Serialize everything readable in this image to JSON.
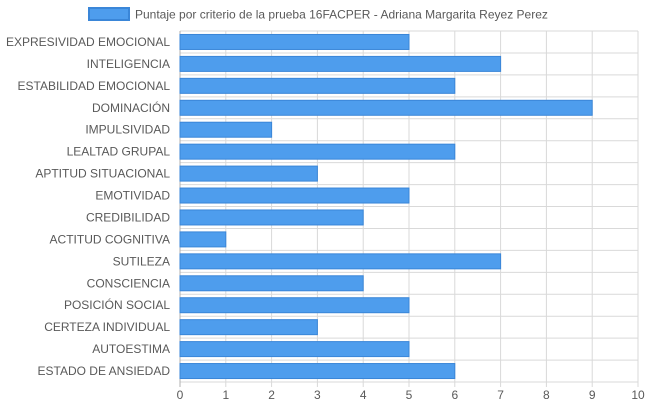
{
  "chart_data": {
    "type": "bar",
    "orientation": "horizontal",
    "categories": [
      "EXPRESIVIDAD EMOCIONAL",
      "INTELIGENCIA",
      "ESTABILIDAD EMOCIONAL",
      "DOMINACIÓN",
      "IMPULSIVIDAD",
      "LEALTAD GRUPAL",
      "APTITUD SITUACIONAL",
      "EMOTIVIDAD",
      "CREDIBILIDAD",
      "ACTITUD COGNITIVA",
      "SUTILEZA",
      "CONSCIENCIA",
      "POSICIÓN SOCIAL",
      "CERTEZA INDIVIDUAL",
      "AUTOESTIMA",
      "ESTADO DE ANSIEDAD"
    ],
    "series": [
      {
        "name": "Puntaje por criterio de la prueba 16FACPER - Adriana Margarita Reyez Perez",
        "values": [
          5,
          7,
          6,
          9,
          2,
          6,
          3,
          5,
          4,
          1,
          7,
          4,
          5,
          3,
          5,
          6
        ]
      }
    ],
    "xlim": [
      0,
      10
    ],
    "xticks": [
      0,
      1,
      2,
      3,
      4,
      5,
      6,
      7,
      8,
      9,
      10
    ],
    "grid": true,
    "legend_position": "top",
    "colors": {
      "bar_fill": "#4e9ded",
      "bar_stroke": "#3a86d8"
    }
  }
}
